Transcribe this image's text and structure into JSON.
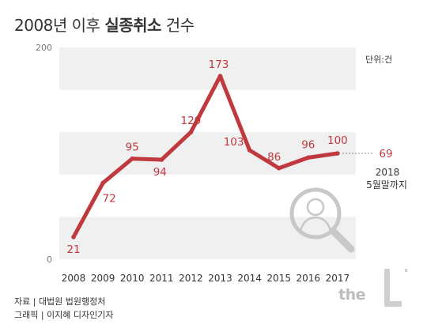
{
  "header": {
    "title_prefix": "2008년 이후 ",
    "title_bold": "실종취소",
    "title_suffix": " 건수",
    "unit": "단위:건"
  },
  "chart_data": {
    "type": "line",
    "categories": [
      "2008",
      "2009",
      "2010",
      "2011",
      "2012",
      "2013",
      "2014",
      "2015",
      "2016",
      "2017"
    ],
    "values": [
      21,
      72,
      95,
      94,
      120,
      173,
      103,
      86,
      96,
      100
    ],
    "extra_point": {
      "value": 69,
      "note_line1": "2018",
      "note_line2": "5월말까지"
    },
    "ylim": [
      0,
      200
    ],
    "yticks": [
      "0",
      "200"
    ],
    "colors": {
      "line": "#c0393e",
      "band": "#f0f0f0"
    },
    "title": "2008년 이후 실종취소 건수",
    "xlabel": "",
    "ylabel": ""
  },
  "footer": {
    "source_line1": "자료 | 대법원 법원행정처",
    "source_line2": "그래픽 | 이지혜 디자인기자",
    "logo_text": "the"
  }
}
